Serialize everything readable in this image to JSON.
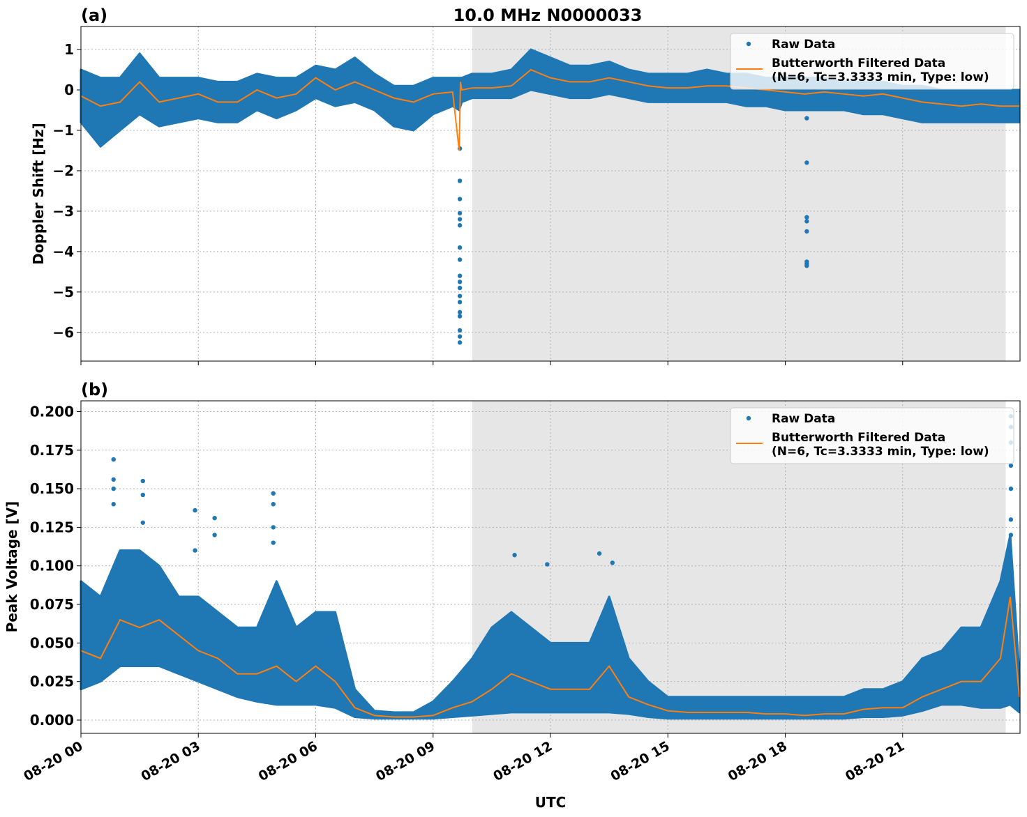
{
  "chart_data": [
    {
      "type": "scatter",
      "panel_label": "(a)",
      "title": "10.0 MHz N0000033",
      "xlabel": "",
      "ylabel": "Doppler Shift [Hz]",
      "ylim": [
        -6.71,
        1.57
      ],
      "yticks": [
        1,
        0,
        -1,
        -2,
        -3,
        -4,
        -5,
        -6
      ],
      "ytick_labels": [
        "1",
        "0",
        "−1",
        "−2",
        "−3",
        "−4",
        "−5",
        "−6"
      ],
      "xlim": [
        "08-20 00:00",
        "08-21 00:00"
      ],
      "xtick_labels": [
        "08-20 00",
        "08-20 03",
        "08-20 06",
        "08-20 09",
        "08-20 12",
        "08-20 15",
        "08-20 18",
        "08-20 21"
      ],
      "grid": true,
      "shaded_interval": [
        "08-20 10:00",
        "08-20 23:38"
      ],
      "legend": {
        "placement": "top-right",
        "entries": [
          "Raw Data",
          "Butterworth Filtered Data\n(N=6, Tc=3.3333 min, Type: low)"
        ]
      },
      "day": "08-20",
      "t": [
        "00:00",
        "00:30",
        "01:00",
        "01:30",
        "02:00",
        "02:30",
        "03:00",
        "03:30",
        "04:00",
        "04:30",
        "05:00",
        "05:30",
        "06:00",
        "06:30",
        "07:00",
        "07:30",
        "08:00",
        "08:30",
        "09:00",
        "09:30",
        "09:40",
        "09:42",
        "09:44",
        "10:00",
        "10:30",
        "11:00",
        "11:30",
        "12:00",
        "12:30",
        "13:00",
        "13:30",
        "14:00",
        "14:30",
        "15:00",
        "15:30",
        "16:00",
        "16:30",
        "17:00",
        "17:30",
        "18:00",
        "18:30",
        "19:00",
        "19:30",
        "20:00",
        "20:30",
        "21:00",
        "21:30",
        "22:00",
        "22:30",
        "23:00",
        "23:30",
        "23:59"
      ],
      "series": [
        {
          "name": "Butterworth Filtered Data",
          "color": "#ff7f0e",
          "values": [
            -0.15,
            -0.4,
            -0.3,
            0.2,
            -0.3,
            -0.2,
            -0.1,
            -0.3,
            -0.3,
            0.0,
            -0.2,
            -0.1,
            0.3,
            0.0,
            0.2,
            0.0,
            -0.2,
            -0.3,
            -0.1,
            -0.05,
            -1.5,
            0.2,
            0.0,
            0.05,
            0.05,
            0.1,
            0.5,
            0.3,
            0.2,
            0.2,
            0.3,
            0.2,
            0.1,
            0.05,
            0.05,
            0.1,
            0.1,
            0.05,
            0.0,
            -0.05,
            -0.1,
            -0.05,
            -0.1,
            -0.15,
            -0.1,
            -0.2,
            -0.3,
            -0.35,
            -0.4,
            -0.35,
            -0.4,
            -0.4
          ]
        },
        {
          "name": "Raw Data",
          "color": "#1f77b4",
          "high": [
            0.5,
            0.3,
            0.3,
            0.9,
            0.3,
            0.3,
            0.3,
            0.2,
            0.2,
            0.4,
            0.3,
            0.3,
            0.6,
            0.5,
            0.8,
            0.4,
            0.1,
            0.1,
            0.3,
            0.3,
            0.3,
            0.3,
            0.3,
            0.4,
            0.4,
            0.5,
            1.0,
            0.8,
            0.6,
            0.6,
            0.7,
            0.5,
            0.4,
            0.4,
            0.4,
            0.5,
            0.4,
            0.4,
            0.3,
            0.3,
            0.3,
            0.3,
            0.2,
            0.2,
            0.2,
            0.1,
            0.1,
            0.0,
            0.0,
            0.0,
            0.0,
            0.0
          ],
          "low": [
            -0.8,
            -1.4,
            -1.0,
            -0.6,
            -0.9,
            -0.8,
            -0.7,
            -0.8,
            -0.8,
            -0.5,
            -0.7,
            -0.5,
            -0.2,
            -0.4,
            -0.3,
            -0.5,
            -0.9,
            -1.0,
            -0.6,
            -0.4,
            -0.5,
            -0.4,
            -0.3,
            -0.2,
            -0.2,
            -0.2,
            0.0,
            -0.1,
            -0.2,
            -0.2,
            -0.1,
            -0.2,
            -0.3,
            -0.3,
            -0.3,
            -0.3,
            -0.3,
            -0.4,
            -0.4,
            -0.5,
            -0.5,
            -0.5,
            -0.5,
            -0.6,
            -0.6,
            -0.7,
            -0.8,
            -0.8,
            -0.8,
            -0.8,
            -0.8,
            -0.8
          ],
          "outliers": [
            {
              "t": "09:41",
              "values": [
                -1.45,
                -2.25,
                -2.7,
                -3.05,
                -3.2,
                -3.35,
                -3.9,
                -4.2,
                -4.6,
                -4.75,
                -4.9,
                -5.1,
                -5.25,
                -5.5,
                -5.6,
                -5.95,
                -6.1,
                -6.25
              ]
            },
            {
              "t": "18:33",
              "values": [
                -0.7,
                -1.8,
                -3.15,
                -3.25,
                -3.5,
                -4.25,
                -4.3,
                -4.35
              ]
            }
          ]
        }
      ]
    },
    {
      "type": "scatter",
      "panel_label": "(b)",
      "xlabel": "UTC",
      "ylabel": "Peak Voltage [V]",
      "ylim": [
        -0.0086,
        0.207
      ],
      "yticks": [
        0,
        0.025,
        0.05,
        0.075,
        0.1,
        0.125,
        0.15,
        0.175,
        0.2
      ],
      "ytick_labels": [
        "0.000",
        "0.025",
        "0.050",
        "0.075",
        "0.100",
        "0.125",
        "0.150",
        "0.175",
        "0.200"
      ],
      "xlim": [
        "08-20 00:00",
        "08-21 00:00"
      ],
      "xtick_labels": [
        "08-20 00",
        "08-20 03",
        "08-20 06",
        "08-20 09",
        "08-20 12",
        "08-20 15",
        "08-20 18",
        "08-20 21"
      ],
      "grid": true,
      "shaded_interval": [
        "08-20 10:00",
        "08-20 23:38"
      ],
      "legend": {
        "placement": "top-right",
        "entries": [
          "Raw Data",
          "Butterworth Filtered Data\n(N=6, Tc=3.3333 min, Type: low)"
        ]
      },
      "day": "08-20",
      "t": [
        "00:00",
        "00:30",
        "01:00",
        "01:30",
        "02:00",
        "02:30",
        "03:00",
        "03:30",
        "04:00",
        "04:30",
        "05:00",
        "05:30",
        "06:00",
        "06:30",
        "07:00",
        "07:30",
        "08:00",
        "08:30",
        "09:00",
        "09:30",
        "10:00",
        "10:30",
        "11:00",
        "11:30",
        "12:00",
        "12:30",
        "13:00",
        "13:30",
        "14:00",
        "14:30",
        "15:00",
        "15:30",
        "16:00",
        "16:30",
        "17:00",
        "17:30",
        "18:00",
        "18:30",
        "19:00",
        "19:30",
        "20:00",
        "20:30",
        "21:00",
        "21:30",
        "22:00",
        "22:30",
        "23:00",
        "23:30",
        "23:45",
        "23:59"
      ],
      "series": [
        {
          "name": "Butterworth Filtered Data",
          "color": "#ff7f0e",
          "values": [
            0.045,
            0.04,
            0.065,
            0.06,
            0.065,
            0.055,
            0.045,
            0.04,
            0.03,
            0.03,
            0.035,
            0.025,
            0.035,
            0.025,
            0.008,
            0.003,
            0.002,
            0.002,
            0.003,
            0.008,
            0.012,
            0.02,
            0.03,
            0.025,
            0.02,
            0.02,
            0.02,
            0.035,
            0.015,
            0.01,
            0.006,
            0.005,
            0.005,
            0.005,
            0.005,
            0.004,
            0.004,
            0.003,
            0.004,
            0.004,
            0.007,
            0.008,
            0.008,
            0.015,
            0.02,
            0.025,
            0.025,
            0.04,
            0.08,
            0.015
          ]
        },
        {
          "name": "Raw Data",
          "color": "#1f77b4",
          "high": [
            0.09,
            0.08,
            0.11,
            0.11,
            0.1,
            0.08,
            0.08,
            0.07,
            0.06,
            0.06,
            0.09,
            0.06,
            0.07,
            0.07,
            0.02,
            0.006,
            0.005,
            0.005,
            0.012,
            0.025,
            0.04,
            0.06,
            0.07,
            0.06,
            0.05,
            0.05,
            0.05,
            0.08,
            0.04,
            0.025,
            0.015,
            0.015,
            0.015,
            0.015,
            0.015,
            0.015,
            0.015,
            0.015,
            0.015,
            0.015,
            0.02,
            0.02,
            0.025,
            0.04,
            0.045,
            0.06,
            0.06,
            0.09,
            0.12,
            0.03
          ],
          "low": [
            0.02,
            0.025,
            0.035,
            0.035,
            0.035,
            0.03,
            0.025,
            0.02,
            0.015,
            0.012,
            0.01,
            0.01,
            0.01,
            0.008,
            0.002,
            0.001,
            0.001,
            0.001,
            0.001,
            0.002,
            0.003,
            0.004,
            0.005,
            0.005,
            0.005,
            0.005,
            0.005,
            0.005,
            0.004,
            0.002,
            0.001,
            0.001,
            0.001,
            0.001,
            0.001,
            0.001,
            0.001,
            0.001,
            0.001,
            0.001,
            0.002,
            0.002,
            0.003,
            0.006,
            0.01,
            0.01,
            0.008,
            0.008,
            0.01,
            0.005
          ],
          "outliers": [
            {
              "t": "00:50",
              "values": [
                0.169,
                0.156,
                0.15,
                0.14
              ]
            },
            {
              "t": "01:35",
              "values": [
                0.155,
                0.146,
                0.128
              ]
            },
            {
              "t": "02:55",
              "values": [
                0.136,
                0.11
              ]
            },
            {
              "t": "03:25",
              "values": [
                0.131,
                0.12
              ]
            },
            {
              "t": "04:55",
              "values": [
                0.147,
                0.14,
                0.125,
                0.115
              ]
            },
            {
              "t": "11:05",
              "values": [
                0.107
              ]
            },
            {
              "t": "11:55",
              "values": [
                0.101
              ]
            },
            {
              "t": "13:15",
              "values": [
                0.108
              ]
            },
            {
              "t": "13:35",
              "values": [
                0.102
              ]
            },
            {
              "t": "23:46",
              "values": [
                0.197,
                0.19,
                0.18,
                0.165,
                0.15,
                0.13,
                0.12
              ]
            }
          ]
        }
      ]
    }
  ]
}
